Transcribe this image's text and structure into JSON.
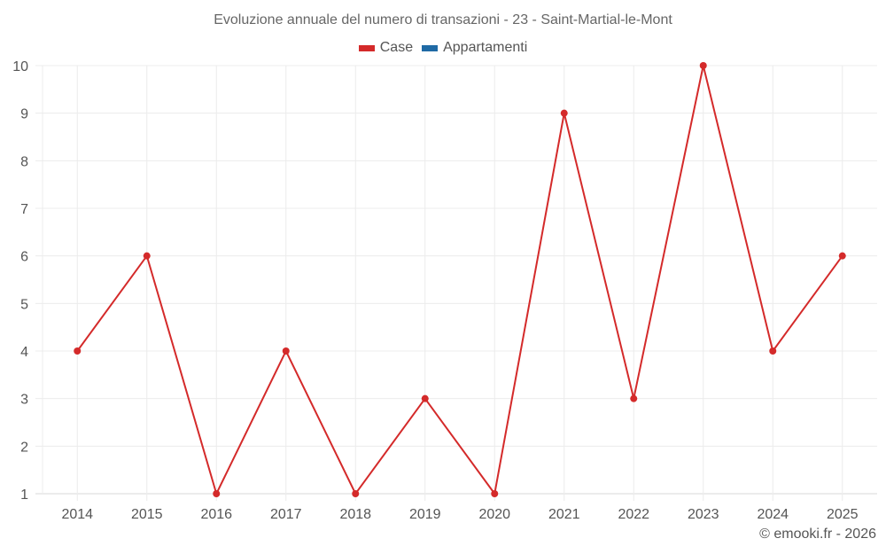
{
  "chart_data": {
    "type": "line",
    "title": "Evoluzione annuale del numero di transazioni - 23 - Saint-Martial-le-Mont",
    "categories": [
      "2014",
      "2015",
      "2016",
      "2017",
      "2018",
      "2019",
      "2020",
      "2021",
      "2022",
      "2023",
      "2024",
      "2025"
    ],
    "series": [
      {
        "name": "Case",
        "color": "#d42a2a",
        "values": [
          4,
          6,
          1,
          4,
          1,
          3,
          1,
          9,
          3,
          10,
          4,
          6
        ]
      },
      {
        "name": "Appartamenti",
        "color": "#1f6aa5",
        "values": []
      }
    ],
    "xlabel": "",
    "ylabel": "",
    "ylim": [
      1,
      10
    ],
    "yticks": [
      1,
      2,
      3,
      4,
      5,
      6,
      7,
      8,
      9,
      10
    ],
    "grid": true,
    "legend_position": "top"
  },
  "legend": [
    {
      "label": "Case",
      "color": "#d42a2a"
    },
    {
      "label": "Appartamenti",
      "color": "#1f6aa5"
    }
  ],
  "credit": "© emooki.fr - 2026"
}
